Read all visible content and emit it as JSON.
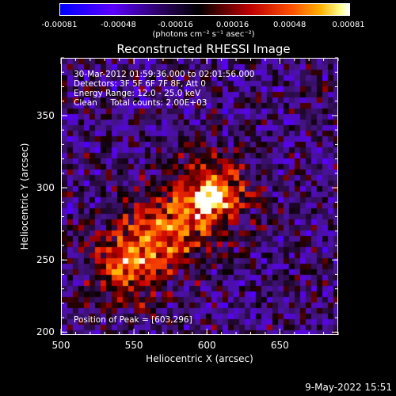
{
  "colorbar": {
    "ticks": [
      "-0.00081",
      "-0.00048",
      "-0.00016",
      "0.00016",
      "0.00048",
      "0.00081"
    ],
    "unit": "(photons cm⁻² s⁻¹ asec⁻²)"
  },
  "chart_data": {
    "type": "heatmap",
    "title": "Reconstructed RHESSI Image",
    "xlabel": "Heliocentric X (arcsec)",
    "ylabel": "Heliocentric Y (arcsec)",
    "xlim": [
      500,
      690
    ],
    "ylim": [
      198,
      390
    ],
    "x_ticks": [
      "500",
      "550",
      "600",
      "650"
    ],
    "y_ticks": [
      "200",
      "250",
      "300",
      "350"
    ],
    "color_range": [
      -0.00081,
      0.00081
    ],
    "annotations": [
      "30-Mar-2012 01:59:36.000 to 02:01:56.000",
      "Detectors: 3F 5F 6F 7F 8F, Att 0",
      "Energy Range: 12.0 - 25.0 keV",
      "Clean     Total counts: 2.00E+03"
    ],
    "peak_label": "Position of Peak = [603,296]",
    "peak": [
      603,
      296
    ],
    "source_ridge": [
      [
        545,
        248
      ],
      [
        560,
        262
      ],
      [
        575,
        272
      ],
      [
        590,
        285
      ],
      [
        603,
        296
      ]
    ]
  },
  "date_stamp": "9-May-2022 15:51"
}
